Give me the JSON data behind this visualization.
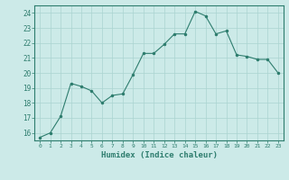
{
  "x": [
    0,
    1,
    2,
    3,
    4,
    5,
    6,
    7,
    8,
    9,
    10,
    11,
    12,
    13,
    14,
    15,
    16,
    17,
    18,
    19,
    20,
    21,
    22,
    23
  ],
  "y": [
    15.7,
    16.0,
    17.1,
    19.3,
    19.1,
    18.8,
    18.0,
    18.5,
    18.6,
    19.9,
    21.3,
    21.3,
    21.9,
    22.6,
    22.6,
    24.1,
    23.8,
    22.6,
    22.8,
    21.2,
    21.1,
    20.9,
    20.9,
    20.0
  ],
  "xlabel": "Humidex (Indice chaleur)",
  "line_color": "#2e7d6e",
  "marker_color": "#2e7d6e",
  "bg_color": "#cceae8",
  "grid_color": "#aad4d0",
  "axis_color": "#2e7d6e",
  "tick_color": "#2e7d6e",
  "xlabel_color": "#2e7d6e",
  "ylim": [
    15.5,
    24.5
  ],
  "yticks": [
    16,
    17,
    18,
    19,
    20,
    21,
    22,
    23,
    24
  ],
  "xticks": [
    0,
    1,
    2,
    3,
    4,
    5,
    6,
    7,
    8,
    9,
    10,
    11,
    12,
    13,
    14,
    15,
    16,
    17,
    18,
    19,
    20,
    21,
    22,
    23
  ]
}
